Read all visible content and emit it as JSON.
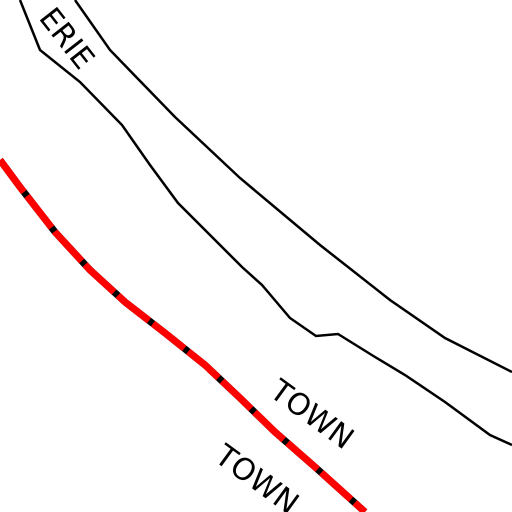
{
  "labels": [
    "ERIE",
    "TOWN",
    "TOWN"
  ]
}
